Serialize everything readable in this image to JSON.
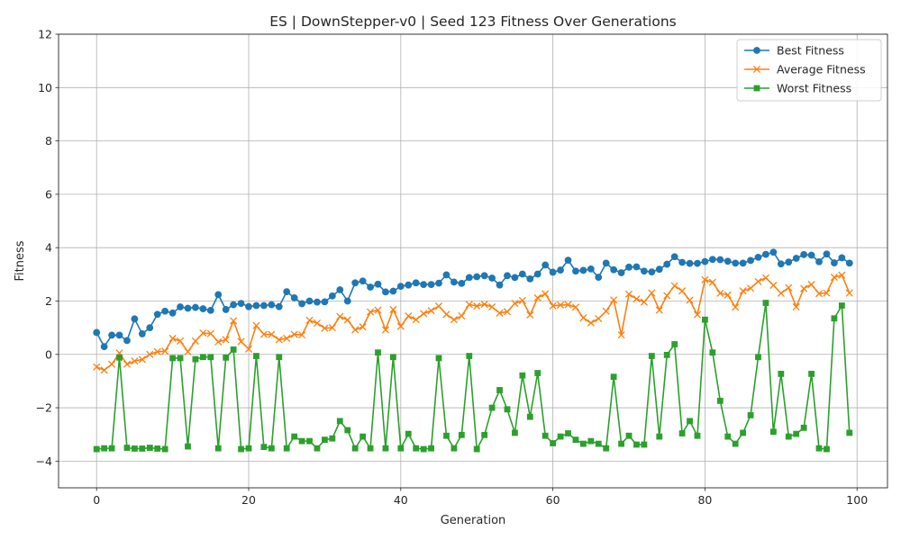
{
  "chart_data": {
    "type": "line",
    "title": "ES | DownStepper-v0 | Seed 123 Fitness Over Generations",
    "xlabel": "Generation",
    "ylabel": "Fitness",
    "xlim": [
      -5,
      104
    ],
    "ylim": [
      -5,
      12
    ],
    "xticks": [
      0,
      20,
      40,
      60,
      80,
      100
    ],
    "yticks": [
      -4,
      -2,
      0,
      2,
      4,
      6,
      8,
      10,
      12
    ],
    "grid": true,
    "legend_position": "top-right",
    "x": [
      0,
      1,
      2,
      3,
      4,
      5,
      6,
      7,
      8,
      9,
      10,
      11,
      12,
      13,
      14,
      15,
      16,
      17,
      18,
      19,
      20,
      21,
      22,
      23,
      24,
      25,
      26,
      27,
      28,
      29,
      30,
      31,
      32,
      33,
      34,
      35,
      36,
      37,
      38,
      39,
      40,
      41,
      42,
      43,
      44,
      45,
      46,
      47,
      48,
      49,
      50,
      51,
      52,
      53,
      54,
      55,
      56,
      57,
      58,
      59,
      60,
      61,
      62,
      63,
      64,
      65,
      66,
      67,
      68,
      69,
      70,
      71,
      72,
      73,
      74,
      75,
      76,
      77,
      78,
      79,
      80,
      81,
      82,
      83,
      84,
      85,
      86,
      87,
      88,
      89,
      90,
      91,
      92,
      93,
      94,
      95,
      96,
      97,
      98,
      99
    ],
    "series": [
      {
        "name": "Best Fitness",
        "color": "#1f77b4",
        "marker": "circle",
        "values": [
          0.82,
          0.29,
          0.72,
          0.72,
          0.52,
          1.33,
          0.77,
          1.0,
          1.5,
          1.62,
          1.55,
          1.78,
          1.73,
          1.76,
          1.71,
          1.65,
          2.24,
          1.68,
          1.86,
          1.91,
          1.79,
          1.83,
          1.83,
          1.86,
          1.79,
          2.35,
          2.12,
          1.9,
          2.0,
          1.96,
          1.97,
          2.19,
          2.42,
          2.0,
          2.68,
          2.75,
          2.52,
          2.63,
          2.34,
          2.37,
          2.55,
          2.6,
          2.68,
          2.62,
          2.62,
          2.67,
          2.98,
          2.71,
          2.66,
          2.88,
          2.91,
          2.95,
          2.86,
          2.6,
          2.95,
          2.88,
          3.01,
          2.83,
          3.01,
          3.35,
          3.08,
          3.16,
          3.53,
          3.12,
          3.15,
          3.2,
          2.89,
          3.42,
          3.17,
          3.06,
          3.27,
          3.28,
          3.12,
          3.09,
          3.19,
          3.38,
          3.66,
          3.45,
          3.41,
          3.41,
          3.48,
          3.56,
          3.55,
          3.49,
          3.42,
          3.42,
          3.52,
          3.64,
          3.75,
          3.83,
          3.39,
          3.46,
          3.6,
          3.74,
          3.72,
          3.47,
          3.76,
          3.43,
          3.62,
          3.42
        ]
      },
      {
        "name": "Average Fitness",
        "color": "#ff7f0e",
        "marker": "x",
        "values": [
          -0.47,
          -0.59,
          -0.37,
          0.05,
          -0.37,
          -0.25,
          -0.19,
          0.0,
          0.1,
          0.12,
          0.6,
          0.5,
          0.1,
          0.5,
          0.8,
          0.78,
          0.47,
          0.55,
          1.26,
          0.48,
          0.2,
          1.08,
          0.75,
          0.75,
          0.55,
          0.6,
          0.75,
          0.73,
          1.28,
          1.17,
          0.98,
          1.0,
          1.42,
          1.29,
          0.92,
          1.03,
          1.59,
          1.66,
          0.92,
          1.68,
          1.05,
          1.44,
          1.3,
          1.53,
          1.64,
          1.81,
          1.5,
          1.3,
          1.44,
          1.87,
          1.81,
          1.88,
          1.78,
          1.55,
          1.6,
          1.91,
          2.02,
          1.48,
          2.12,
          2.27,
          1.82,
          1.85,
          1.86,
          1.77,
          1.37,
          1.18,
          1.34,
          1.62,
          2.04,
          0.73,
          2.26,
          2.08,
          1.96,
          2.3,
          1.66,
          2.2,
          2.57,
          2.38,
          2.03,
          1.49,
          2.8,
          2.7,
          2.29,
          2.23,
          1.77,
          2.38,
          2.48,
          2.73,
          2.87,
          2.59,
          2.29,
          2.5,
          1.78,
          2.47,
          2.62,
          2.28,
          2.3,
          2.89,
          2.97,
          2.3
        ]
      },
      {
        "name": "Worst Fitness",
        "color": "#2ca02c",
        "marker": "square",
        "values": [
          -3.55,
          -3.52,
          -3.52,
          -0.12,
          -3.5,
          -3.53,
          -3.53,
          -3.5,
          -3.53,
          -3.55,
          -0.14,
          -0.14,
          -3.45,
          -0.18,
          -0.1,
          -0.1,
          -3.52,
          -0.12,
          0.18,
          -3.55,
          -3.52,
          -0.06,
          -3.47,
          -3.52,
          -0.1,
          -3.52,
          -3.08,
          -3.25,
          -3.25,
          -3.52,
          -3.2,
          -3.15,
          -2.5,
          -2.84,
          -3.52,
          -3.08,
          -3.52,
          0.07,
          -3.52,
          -0.1,
          -3.52,
          -2.98,
          -3.52,
          -3.55,
          -3.52,
          -0.14,
          -3.05,
          -3.52,
          -3.02,
          -0.06,
          -3.55,
          -3.02,
          -2.0,
          -1.34,
          -2.06,
          -2.94,
          -0.79,
          -2.34,
          -0.7,
          -3.05,
          -3.33,
          -3.08,
          -2.96,
          -3.2,
          -3.35,
          -3.25,
          -3.35,
          -3.52,
          -0.84,
          -3.35,
          -3.05,
          -3.38,
          -3.38,
          -0.06,
          -3.08,
          -0.02,
          0.38,
          -2.96,
          -2.5,
          -3.05,
          1.3,
          0.07,
          -1.74,
          -3.08,
          -3.35,
          -2.94,
          -2.28,
          -0.1,
          1.93,
          -2.9,
          -0.73,
          -3.08,
          -2.98,
          -2.75,
          -0.73,
          -3.52,
          -3.55,
          1.35,
          1.83,
          -2.94
        ]
      }
    ]
  }
}
